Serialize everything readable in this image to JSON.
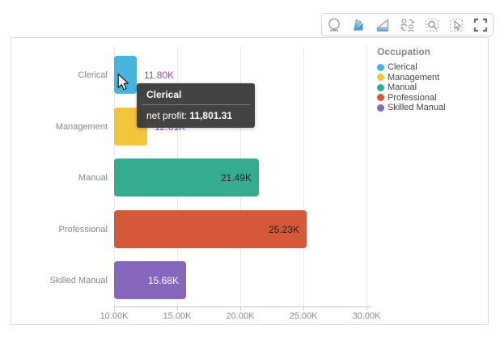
{
  "toolbar": {
    "icons": [
      {
        "name": "crystal-ball-icon"
      },
      {
        "name": "fan-flip-icon"
      },
      {
        "name": "set-square-ruler-icon"
      },
      {
        "name": "swap-users-icon"
      },
      {
        "name": "zoom-selection-icon"
      },
      {
        "name": "cursor-selection-icon"
      },
      {
        "name": "fullscreen-icon"
      }
    ]
  },
  "legend": {
    "title": "Occupation",
    "items": [
      {
        "label": "Clerical",
        "color": "#47b4e0"
      },
      {
        "label": "Management",
        "color": "#f3c43c"
      },
      {
        "label": "Manual",
        "color": "#35ac90"
      },
      {
        "label": "Professional",
        "color": "#d5583a"
      },
      {
        "label": "Skilled Manual",
        "color": "#8766bd"
      }
    ]
  },
  "tooltip": {
    "title": "Clerical",
    "label": "net profit:",
    "value": "11,801.31"
  },
  "chart_data": {
    "type": "bar",
    "orientation": "horizontal",
    "title": "",
    "xlabel": "",
    "ylabel": "",
    "categories": [
      "Clerical",
      "Management",
      "Manual",
      "Professional",
      "Skilled Manual"
    ],
    "values": [
      11801.31,
      12610,
      21490,
      25230,
      15680
    ],
    "value_labels": [
      "11.80K",
      "12.61K",
      "21.49K",
      "25.23K",
      "15.68K"
    ],
    "bar_colors": [
      "#47b4e0",
      "#f3c43c",
      "#35ac90",
      "#d5583a",
      "#8766bd"
    ],
    "value_label_placement": [
      "outside",
      "outside",
      "inside",
      "inside",
      "inside"
    ],
    "value_label_colors": [
      "#8e4da6",
      "#8e4da6",
      "#1f1f1f",
      "#1f1f1f",
      "#ffffff"
    ],
    "x_ticks": [
      {
        "value": 10000,
        "label": "10.00K"
      },
      {
        "value": 15000,
        "label": "15.00K"
      },
      {
        "value": 20000,
        "label": "20.00K"
      },
      {
        "value": 25000,
        "label": "25.00K"
      },
      {
        "value": 30000,
        "label": "30.00K"
      }
    ],
    "xlim": [
      10000,
      30000
    ],
    "grid": "vertical-only",
    "legend_position": "right"
  }
}
